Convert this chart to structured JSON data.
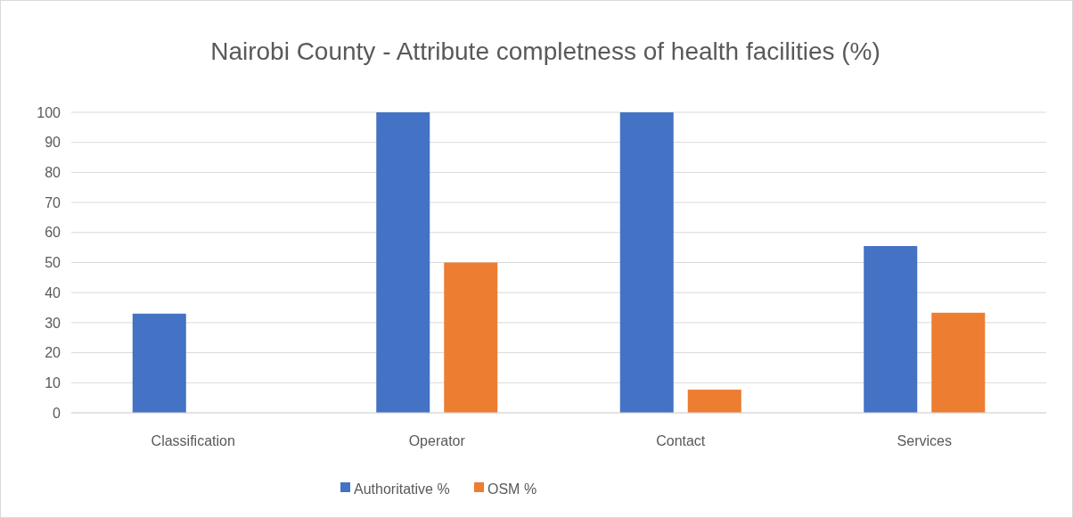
{
  "chart_data": {
    "type": "bar",
    "title": "Nairobi County - Attribute completness of health facilities (%)",
    "categories": [
      "Classification",
      "Operator",
      "Contact",
      "Services"
    ],
    "series": [
      {
        "name": "Authoritative %",
        "color": "#4472c4",
        "values": [
          33,
          100,
          100,
          55.5
        ]
      },
      {
        "name": "OSM %",
        "color": "#ed7d31",
        "values": [
          0,
          50,
          7.7,
          33.3
        ]
      }
    ],
    "ylim": [
      0,
      100
    ],
    "yticks": [
      0,
      10,
      20,
      30,
      40,
      50,
      60,
      70,
      80,
      90,
      100
    ],
    "grid": "y",
    "legend": "bottom"
  }
}
